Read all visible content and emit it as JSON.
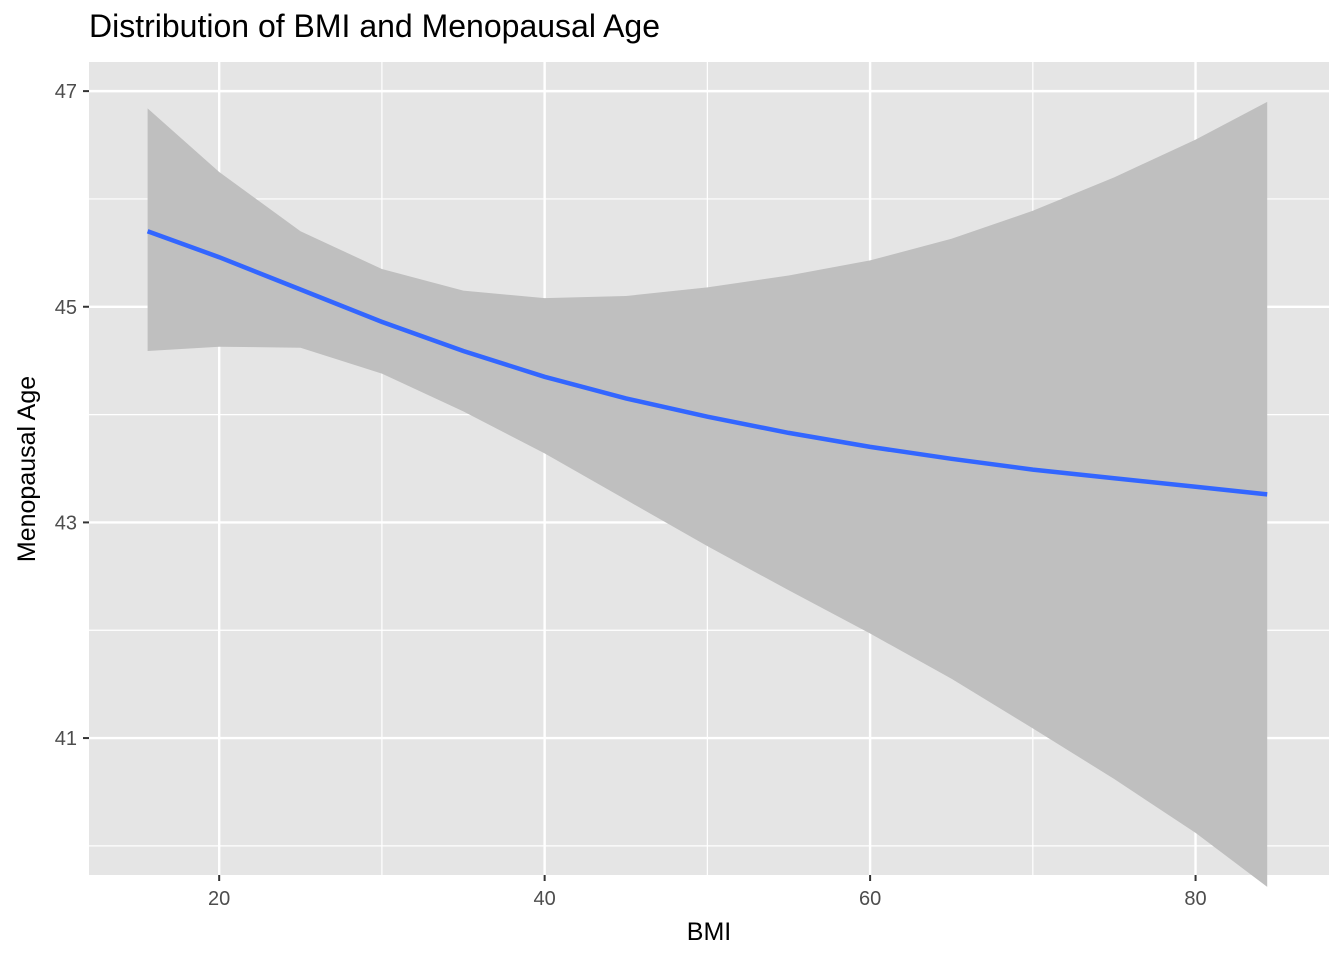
{
  "chart_data": {
    "type": "line",
    "title": "Distribution of BMI and Menopausal Age",
    "xlabel": "BMI",
    "ylabel": "Menopausal Age",
    "xlim": [
      12.0,
      88.2
    ],
    "ylim": [
      39.73,
      47.27
    ],
    "xticks": [
      20,
      40,
      60,
      80
    ],
    "yticks": [
      41,
      43,
      45,
      47
    ],
    "x_minor_gridlines": [
      30,
      50,
      70
    ],
    "y_minor_gridlines": [
      40,
      42,
      44,
      46
    ],
    "grid": true,
    "legend": "none",
    "series": [
      {
        "type": "smooth",
        "color": "#3366ff",
        "ribbon_color": "#bfbfbf",
        "x": [
          15.6,
          20,
          25,
          30,
          35,
          40,
          45,
          50,
          55,
          60,
          65,
          70,
          75,
          80,
          84.4
        ],
        "y": [
          45.7,
          45.46,
          45.16,
          44.86,
          44.59,
          44.35,
          44.15,
          43.98,
          43.83,
          43.7,
          43.59,
          43.49,
          43.41,
          43.33,
          43.26
        ],
        "ymin": [
          44.59,
          44.63,
          44.62,
          44.38,
          44.03,
          43.64,
          43.21,
          42.78,
          42.37,
          41.97,
          41.55,
          41.09,
          40.62,
          40.12,
          39.62
        ],
        "ymax": [
          46.84,
          46.25,
          45.7,
          45.35,
          45.15,
          45.08,
          45.1,
          45.18,
          45.29,
          45.43,
          45.63,
          45.89,
          46.2,
          46.55,
          46.9
        ]
      }
    ]
  }
}
